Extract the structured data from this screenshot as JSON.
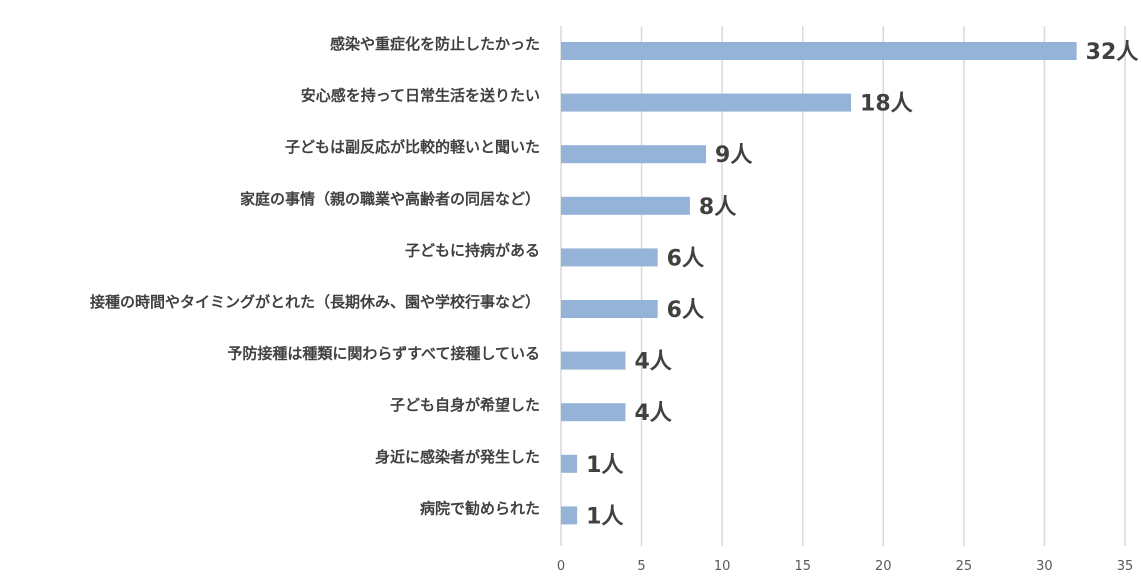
{
  "chart_data": {
    "type": "bar",
    "orientation": "horizontal",
    "title": "",
    "xlabel": "",
    "ylabel": "",
    "categories": [
      "感染や重症化を防止したかった",
      "安心感を持って日常生活を送りたい",
      "子どもは副反応が比較的軽いと聞いた",
      "家庭の事情（親の職業や高齢者の同居など）",
      "子どもに持病がある",
      "接種の時間やタイミングがとれた（長期休み、園や学校行事など）",
      "予防接種は種類に関わらずすべて接種している",
      "子ども自身が希望した",
      "身近に感染者が発生した",
      "病院で勧められた"
    ],
    "values": [
      32,
      18,
      9,
      8,
      6,
      6,
      4,
      4,
      1,
      1
    ],
    "data_labels": [
      "32人",
      "18人",
      "9人",
      "8人",
      "6人",
      "6人",
      "4人",
      "4人",
      "1人",
      "1人"
    ],
    "xlim": [
      0,
      35
    ],
    "xticks": [
      0,
      5,
      10,
      15,
      20,
      25,
      30,
      35
    ],
    "grid": true,
    "legend": "none",
    "bar_color": "#95b3d7",
    "grid_color": "#d9d9d9",
    "text_color": "#404040"
  }
}
